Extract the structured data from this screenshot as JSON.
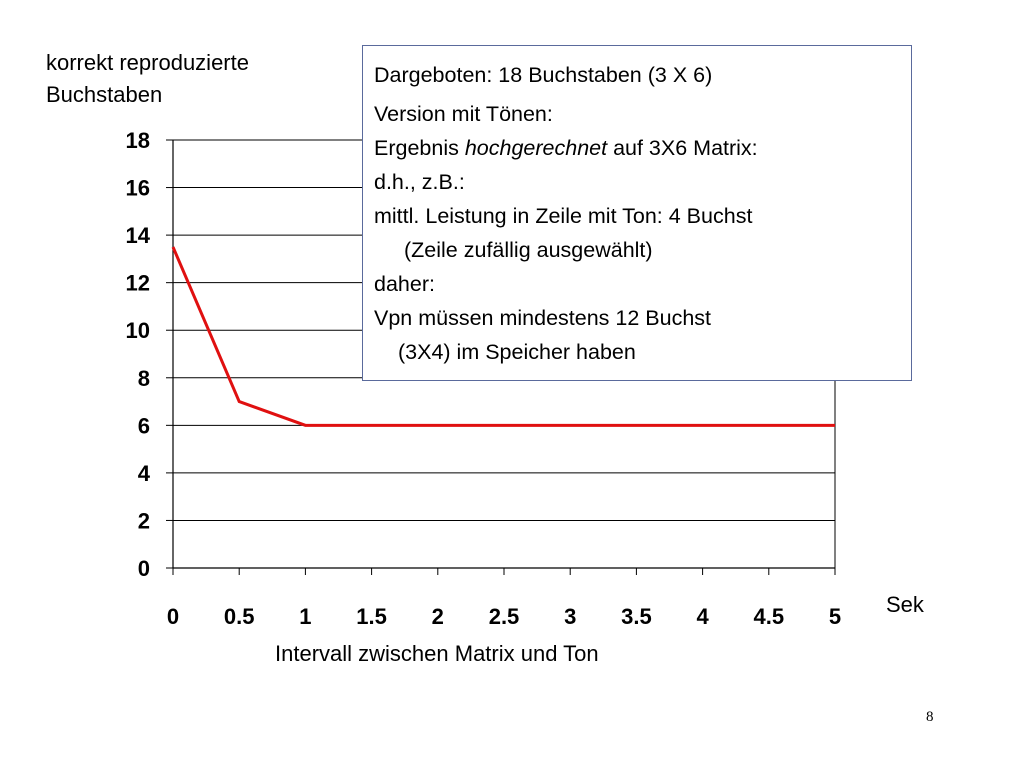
{
  "slide": {
    "ylabel_line1": "korrekt reproduzierte",
    "ylabel_line2": "Buchstaben",
    "xlabel": "Intervall zwischen Matrix und Ton",
    "unit": "Sek",
    "page_number": "8"
  },
  "info_box": {
    "line1": "Dargeboten: 18 Buchstaben (3 X 6)",
    "line2": "Version mit Tönen:",
    "line3_pre": "Ergebnis ",
    "line3_em": "hochgerechnet",
    "line3_post": " auf 3X6 Matrix:",
    "line4": "d.h., z.B.:",
    "line5": "mittl. Leistung in Zeile mit Ton: 4 Buchst",
    "line6": "(Zeile zufällig ausgewählt)",
    "line7": "daher:",
    "line8": "Vpn müssen mindestens 12 Buchst",
    "line9": "(3X4) im Speicher haben"
  },
  "chart_data": {
    "type": "line",
    "title": "",
    "xlabel": "Intervall zwischen Matrix und Ton",
    "ylabel": "korrekt reproduzierte Buchstaben",
    "x_unit": "Sek",
    "xlim": [
      0,
      5
    ],
    "ylim": [
      0,
      18
    ],
    "x_ticks": [
      "0",
      "0.5",
      "1",
      "1.5",
      "2",
      "2.5",
      "3",
      "3.5",
      "4",
      "4.5",
      "5"
    ],
    "y_ticks": [
      "0",
      "2",
      "4",
      "6",
      "8",
      "10",
      "12",
      "14",
      "16",
      "18"
    ],
    "grid": "horizontal",
    "series": [
      {
        "color": "#e01010",
        "x": [
          0,
          0.5,
          1,
          1.5,
          2,
          2.5,
          3,
          3.5,
          4,
          4.5,
          5
        ],
        "y": [
          13.5,
          7,
          6,
          6,
          6,
          6,
          6,
          6,
          6,
          6,
          6
        ]
      }
    ]
  }
}
